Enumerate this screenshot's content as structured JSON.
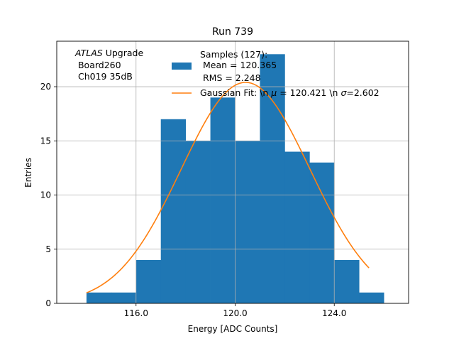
{
  "chart_data": {
    "type": "bar",
    "title": "Run 739",
    "xlabel": "Energy [ADC Counts]",
    "ylabel": "Entries",
    "xlim": [
      112.8,
      127.0
    ],
    "ylim": [
      0,
      24.2
    ],
    "grid": true,
    "x_ticks": [
      116.0,
      120.0,
      124.0
    ],
    "x_tick_labels": [
      "116.0",
      "120.0",
      "124.0"
    ],
    "y_ticks": [
      0,
      5,
      10,
      15,
      20
    ],
    "y_tick_labels": [
      "0",
      "5",
      "10",
      "15",
      "20"
    ],
    "histogram": {
      "name": "Samples (127):",
      "color": "#1f77b4",
      "bins": [
        {
          "x0": 114.0,
          "x1": 115.0,
          "count": 1
        },
        {
          "x0": 115.0,
          "x1": 116.0,
          "count": 1
        },
        {
          "x0": 116.0,
          "x1": 117.0,
          "count": 4
        },
        {
          "x0": 117.0,
          "x1": 118.0,
          "count": 17
        },
        {
          "x0": 118.0,
          "x1": 119.0,
          "count": 15
        },
        {
          "x0": 119.0,
          "x1": 120.0,
          "count": 19
        },
        {
          "x0": 120.0,
          "x1": 121.0,
          "count": 15
        },
        {
          "x0": 121.0,
          "x1": 122.0,
          "count": 23
        },
        {
          "x0": 122.0,
          "x1": 123.0,
          "count": 14
        },
        {
          "x0": 123.0,
          "x1": 124.0,
          "count": 13
        },
        {
          "x0": 124.0,
          "x1": 125.0,
          "count": 4
        },
        {
          "x0": 125.0,
          "x1": 126.0,
          "count": 1
        }
      ]
    },
    "fit": {
      "type": "gaussian",
      "color": "#ff7f0e",
      "mu": 120.421,
      "sigma": 2.602,
      "amplitude": 20.4,
      "x_range": [
        114.0,
        125.4
      ]
    },
    "legend": {
      "position": "top-center",
      "hist_lines": [
        "Samples (127):",
        " Mean = 120.365",
        " RMS = 2.248"
      ],
      "fit_label_parts": {
        "prefix": "Gaussian Fit: \\n ",
        "mu_symbol": "μ",
        "mu_text": " = 120.421 \\n ",
        "sigma_symbol": "σ",
        "sigma_text": "=2.602"
      }
    },
    "annotation": {
      "experiment": "ATLAS",
      "experiment_suffix": " Upgrade",
      "line2": " Board260",
      "line3": " Ch019 35dB"
    }
  }
}
